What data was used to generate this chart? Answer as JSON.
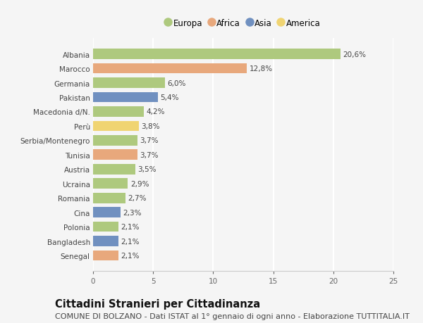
{
  "countries": [
    "Albania",
    "Marocco",
    "Germania",
    "Pakistan",
    "Macedonia d/N.",
    "Perù",
    "Serbia/Montenegro",
    "Tunisia",
    "Austria",
    "Ucraina",
    "Romania",
    "Cina",
    "Polonia",
    "Bangladesh",
    "Senegal"
  ],
  "values": [
    20.6,
    12.8,
    6.0,
    5.4,
    4.2,
    3.8,
    3.7,
    3.7,
    3.5,
    2.9,
    2.7,
    2.3,
    2.1,
    2.1,
    2.1
  ],
  "labels": [
    "20,6%",
    "12,8%",
    "6,0%",
    "5,4%",
    "4,2%",
    "3,8%",
    "3,7%",
    "3,7%",
    "3,5%",
    "2,9%",
    "2,7%",
    "2,3%",
    "2,1%",
    "2,1%",
    "2,1%"
  ],
  "continents": [
    "Europa",
    "Africa",
    "Europa",
    "Asia",
    "Europa",
    "America",
    "Europa",
    "Africa",
    "Europa",
    "Europa",
    "Europa",
    "Asia",
    "Europa",
    "Asia",
    "Africa"
  ],
  "continent_colors": {
    "Europa": "#aec97e",
    "Africa": "#e8a87c",
    "Asia": "#7090c0",
    "America": "#f0d472"
  },
  "legend_order": [
    "Europa",
    "Africa",
    "Asia",
    "America"
  ],
  "legend_colors": [
    "#aec97e",
    "#e8a87c",
    "#7090c0",
    "#f0d472"
  ],
  "xlim": [
    0,
    25
  ],
  "xticks": [
    0,
    5,
    10,
    15,
    20,
    25
  ],
  "title": "Cittadini Stranieri per Cittadinanza",
  "subtitle": "COMUNE DI BOLZANO - Dati ISTAT al 1° gennaio di ogni anno - Elaborazione TUTTITALIA.IT",
  "background_color": "#f5f5f5",
  "plot_bg_color": "#f5f5f5",
  "bar_height": 0.72,
  "title_fontsize": 10.5,
  "subtitle_fontsize": 8,
  "label_fontsize": 7.5,
  "tick_fontsize": 7.5,
  "legend_fontsize": 8.5
}
